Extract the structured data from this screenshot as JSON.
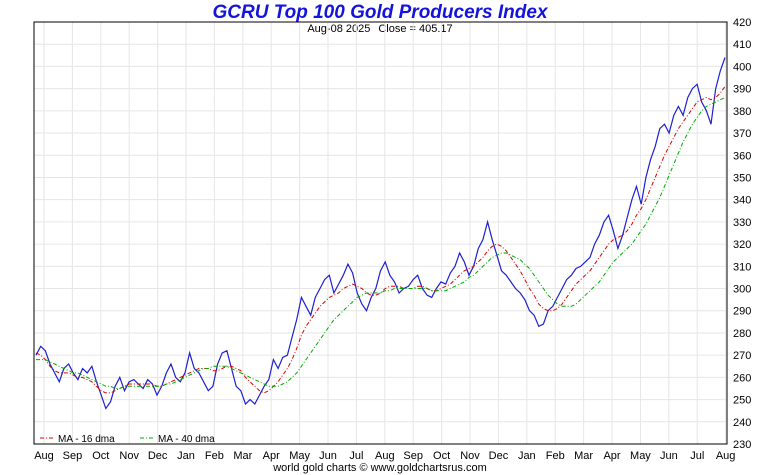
{
  "header": {
    "title": "GCRU Top 100 Gold Producers Index",
    "date": "Aug-08  2025",
    "close": "Close = 405.17"
  },
  "footer": "world gold charts © www.goldchartsrus.com",
  "chart_data": {
    "type": "line",
    "title": "GCRU Top 100 Gold Producers Index",
    "xlabel": "",
    "ylabel": "",
    "ylim": [
      230,
      420
    ],
    "yticks": [
      230,
      240,
      250,
      260,
      270,
      280,
      290,
      300,
      310,
      320,
      330,
      340,
      350,
      360,
      370,
      380,
      390,
      400,
      410,
      420
    ],
    "x_tick_labels": [
      "Aug",
      "Sep",
      "Oct",
      "Nov",
      "Dec",
      "Jan",
      "Feb",
      "Mar",
      "Apr",
      "May",
      "Jun",
      "Jul",
      "Aug",
      "Sep",
      "Oct",
      "Nov",
      "Dec",
      "Jan",
      "Feb",
      "Mar",
      "Apr",
      "May",
      "Jun",
      "Jul",
      "Aug"
    ],
    "x_range": [
      "Jul-2023",
      "Aug-2025"
    ],
    "grid": true,
    "legend_position": "bottom-left",
    "colors": {
      "price": "#1f1fd0",
      "ma16": "#dd0000",
      "ma40": "#00aa00",
      "grid": "#e6e6e6"
    },
    "series": [
      {
        "name": "price",
        "values": [
          270,
          274,
          272,
          266,
          262,
          258,
          264,
          266,
          262,
          259,
          264,
          262,
          265,
          258,
          252,
          246,
          249,
          256,
          260,
          254,
          258,
          259,
          257,
          255,
          259,
          257,
          252,
          256,
          262,
          266,
          260,
          258,
          262,
          271,
          264,
          262,
          258,
          254,
          256,
          266,
          271,
          272,
          264,
          256,
          254,
          248,
          250,
          248,
          252,
          256,
          259,
          268,
          264,
          269,
          270,
          278,
          286,
          296,
          292,
          288,
          296,
          300,
          304,
          306,
          298,
          302,
          306,
          311,
          307,
          298,
          293,
          290,
          296,
          300,
          308,
          312,
          306,
          303,
          298,
          300,
          301,
          304,
          306,
          300,
          297,
          296,
          300,
          303,
          302,
          307,
          310,
          316,
          312,
          306,
          310,
          318,
          322,
          330,
          322,
          315,
          308,
          306,
          303,
          300,
          298,
          295,
          290,
          288,
          283,
          284,
          290,
          292,
          296,
          300,
          304,
          306,
          309,
          310,
          312,
          314,
          320,
          324,
          330,
          333,
          326,
          318,
          324,
          332,
          340,
          346,
          338,
          350,
          358,
          364,
          372,
          374,
          370,
          378,
          382,
          378,
          386,
          390,
          392,
          384,
          380,
          374,
          390,
          398,
          404
        ]
      },
      {
        "name": "MA - 16 dma",
        "values": [
          271,
          270,
          268,
          265,
          263,
          262,
          262,
          262,
          261,
          260,
          260,
          259,
          258,
          256,
          254,
          253,
          253,
          254,
          255,
          256,
          257,
          257,
          257,
          257,
          257,
          257,
          256,
          256,
          257,
          258,
          259,
          260,
          261,
          262,
          263,
          264,
          264,
          264,
          263,
          263,
          264,
          265,
          265,
          264,
          263,
          260,
          258,
          256,
          254,
          253,
          254,
          256,
          258,
          261,
          264,
          268,
          273,
          279,
          283,
          286,
          289,
          292,
          294,
          296,
          297,
          298,
          300,
          301,
          302,
          301,
          300,
          298,
          297,
          297,
          298,
          300,
          301,
          301,
          301,
          300,
          300,
          300,
          301,
          301,
          300,
          299,
          299,
          300,
          301,
          302,
          304,
          306,
          308,
          309,
          310,
          312,
          314,
          317,
          319,
          320,
          319,
          317,
          314,
          311,
          308,
          304,
          300,
          297,
          293,
          291,
          290,
          290,
          291,
          293,
          296,
          299,
          302,
          304,
          306,
          308,
          311,
          314,
          317,
          320,
          322,
          323,
          324,
          326,
          329,
          333,
          336,
          340,
          345,
          350,
          355,
          360,
          364,
          368,
          372,
          375,
          378,
          381,
          384,
          385,
          386,
          385,
          386,
          388,
          391
        ]
      },
      {
        "name": "MA - 40 dma",
        "values": [
          268,
          268,
          268,
          267,
          266,
          265,
          264,
          263,
          262,
          262,
          261,
          260,
          259,
          258,
          257,
          256,
          256,
          255,
          255,
          256,
          256,
          256,
          256,
          256,
          256,
          256,
          256,
          256,
          257,
          257,
          258,
          259,
          260,
          261,
          262,
          263,
          264,
          264,
          265,
          265,
          265,
          265,
          264,
          263,
          262,
          261,
          260,
          259,
          258,
          257,
          256,
          256,
          256,
          257,
          258,
          260,
          262,
          265,
          268,
          271,
          274,
          277,
          280,
          283,
          286,
          288,
          290,
          292,
          294,
          296,
          297,
          298,
          298,
          298,
          298,
          299,
          299,
          300,
          300,
          300,
          300,
          300,
          300,
          300,
          300,
          299,
          299,
          299,
          299,
          300,
          301,
          302,
          303,
          305,
          306,
          308,
          310,
          312,
          314,
          315,
          316,
          316,
          315,
          314,
          313,
          311,
          309,
          306,
          303,
          300,
          297,
          295,
          293,
          292,
          292,
          292,
          293,
          295,
          297,
          299,
          301,
          303,
          306,
          309,
          312,
          314,
          316,
          318,
          320,
          323,
          326,
          329,
          333,
          337,
          341,
          346,
          351,
          356,
          361,
          366,
          370,
          374,
          377,
          380,
          382,
          383,
          384,
          385,
          386
        ]
      }
    ]
  }
}
